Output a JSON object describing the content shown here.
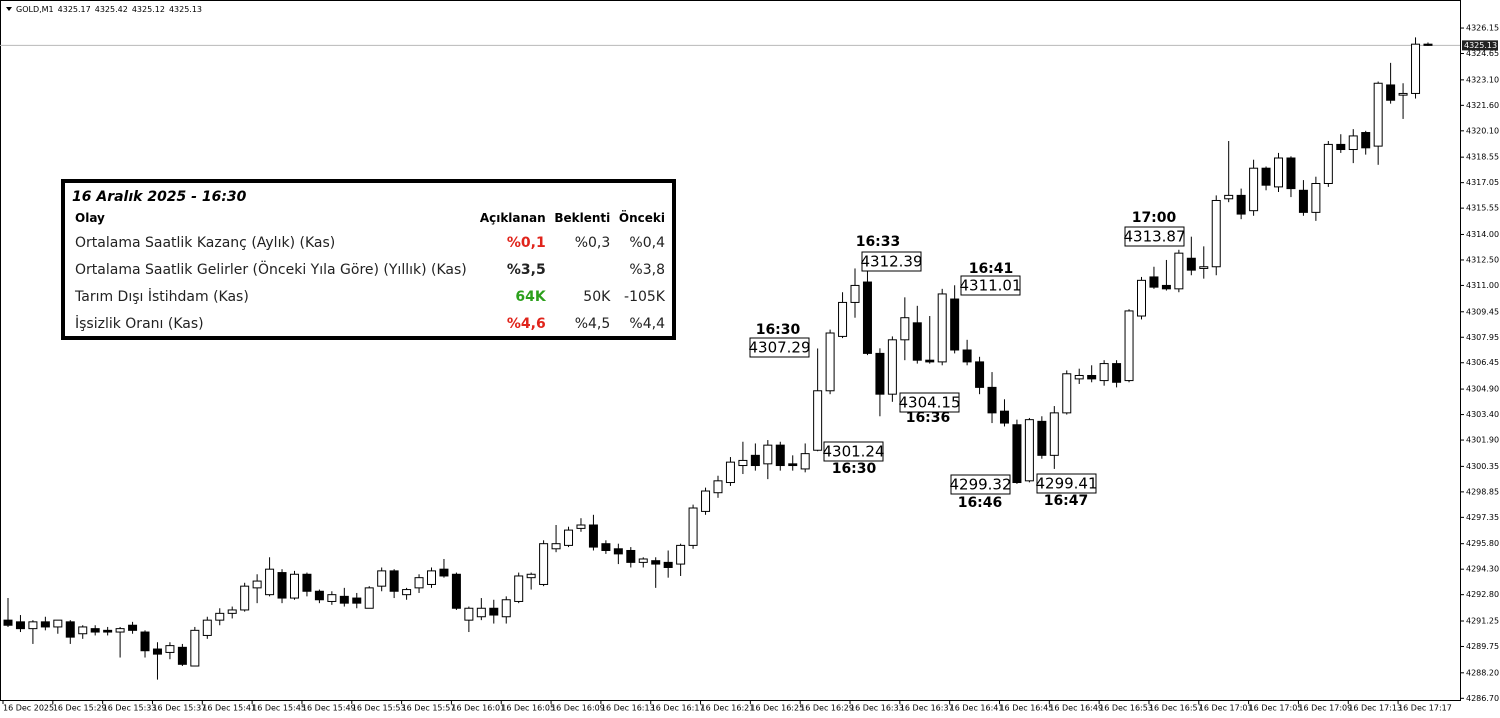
{
  "header": {
    "symbol": "GOLD,M1",
    "ohlc": [
      4325.17,
      4325.42,
      4325.12,
      4325.13
    ]
  },
  "chart_data": {
    "type": "candlestick",
    "categories": [
      "16 Dec 2025",
      null,
      null,
      null,
      "16 Dec 15:29",
      null,
      null,
      null,
      "16 Dec 15:33",
      null,
      null,
      null,
      "16 Dec 15:37",
      null,
      null,
      null,
      "16 Dec 15:41",
      null,
      null,
      null,
      "16 Dec 15:45",
      null,
      null,
      null,
      "16 Dec 15:49",
      null,
      null,
      null,
      "16 Dec 15:53",
      null,
      null,
      null,
      "16 Dec 15:57",
      null,
      null,
      null,
      "16 Dec 16:01",
      null,
      null,
      null,
      "16 Dec 16:05",
      null,
      null,
      null,
      "16 Dec 16:09",
      null,
      null,
      null,
      "16 Dec 16:13",
      null,
      null,
      null,
      "16 Dec 16:17",
      null,
      null,
      null,
      "16 Dec 16:21",
      null,
      null,
      null,
      "16 Dec 16:25",
      null,
      null,
      null,
      "16 Dec 16:29",
      null,
      null,
      null,
      "16 Dec 16:33",
      null,
      null,
      null,
      "16 Dec 16:37",
      null,
      null,
      null,
      "16 Dec 16:41",
      null,
      null,
      null,
      "16 Dec 16:45",
      null,
      null,
      null,
      "16 Dec 16:49",
      null,
      null,
      null,
      "16 Dec 16:53",
      null,
      null,
      null,
      "16 Dec 16:57",
      null,
      null,
      null,
      "16 Dec 17:01",
      null,
      null,
      null,
      "16 Dec 17:05",
      null,
      null,
      null,
      "16 Dec 17:09",
      null,
      null,
      null,
      "16 Dec 17:13",
      null,
      null,
      null,
      "16 Dec 17:17",
      null,
      null
    ],
    "open": [
      4291.3,
      4291.2,
      4290.8,
      4291.2,
      4290.9,
      4291.2,
      4290.5,
      4290.8,
      4290.7,
      4290.6,
      4291.0,
      4290.6,
      4289.6,
      4289.4,
      4289.7,
      4288.6,
      4290.4,
      4291.3,
      4291.7,
      4291.9,
      4293.2,
      4292.8,
      4294.1,
      4292.6,
      4294.0,
      4293.0,
      4292.4,
      4292.7,
      4292.6,
      4292.0,
      4293.3,
      4294.2,
      4292.8,
      4293.2,
      4293.4,
      4294.3,
      4294.0,
      4291.3,
      4291.5,
      4292.0,
      4291.5,
      4292.4,
      4293.8,
      4293.4,
      4295.5,
      4295.7,
      4296.7,
      4296.9,
      4295.8,
      4295.5,
      4295.4,
      4294.7,
      4294.8,
      4294.7,
      4294.6,
      4295.7,
      4297.7,
      4298.8,
      4299.4,
      4300.4,
      4301.0,
      4300.5,
      4301.6,
      4300.5,
      4300.2,
      4301.3,
      4304.8,
      4308.0,
      4310.0,
      4311.2,
      4307.0,
      4304.6,
      4307.8,
      4308.8,
      4306.6,
      4306.5,
      4310.2,
      4307.2,
      4306.5,
      4305.0,
      4303.6,
      4302.8,
      4299.5,
      4303.0,
      4301.0,
      4303.5,
      4305.5,
      4305.7,
      4305.4,
      4306.4,
      4305.4,
      4309.2,
      4311.5,
      4311.0,
      4310.8,
      4312.6,
      4312.0,
      4312.1,
      4316.1,
      4316.3,
      4315.4,
      4317.9,
      4316.8,
      4318.5,
      4316.6,
      4315.3,
      4317.0,
      4319.3,
      4319.0,
      4320.0,
      4319.2,
      4322.8,
      4322.2,
      4322.3,
      4325.2
    ],
    "high": [
      4292.6,
      4291.6,
      4291.3,
      4291.5,
      4291.3,
      4291.3,
      4291.0,
      4291.0,
      4290.9,
      4290.9,
      4291.2,
      4290.7,
      4290.0,
      4290.0,
      4289.9,
      4290.9,
      4291.5,
      4292.0,
      4292.1,
      4293.5,
      4294.0,
      4295.0,
      4294.3,
      4294.2,
      4294.1,
      4293.1,
      4293.0,
      4293.2,
      4292.9,
      4293.3,
      4294.4,
      4294.3,
      4293.2,
      4294.0,
      4294.4,
      4294.9,
      4294.1,
      4292.1,
      4292.6,
      4292.5,
      4292.7,
      4294.1,
      4294.1,
      4296.0,
      4296.9,
      4296.8,
      4297.3,
      4297.5,
      4296.0,
      4295.8,
      4295.6,
      4295.0,
      4295.0,
      4295.4,
      4295.8,
      4298.1,
      4299.1,
      4299.8,
      4300.9,
      4301.8,
      4301.7,
      4301.9,
      4301.8,
      4301.0,
      4301.7,
      4307.29,
      4308.4,
      4310.6,
      4312.0,
      4312.39,
      4307.3,
      4308.0,
      4310.3,
      4309.8,
      4309.2,
      4310.8,
      4311.01,
      4307.8,
      4306.8,
      4305.9,
      4304.3,
      4303.1,
      4303.2,
      4303.3,
      4303.9,
      4306.0,
      4306.1,
      4306.3,
      4306.6,
      4306.6,
      4309.6,
      4311.5,
      4312.1,
      4312.5,
      4313.1,
      4313.87,
      4313.3,
      4316.3,
      4319.5,
      4316.7,
      4318.4,
      4318.0,
      4318.8,
      4318.6,
      4317.2,
      4317.4,
      4319.5,
      4319.9,
      4320.2,
      4320.1,
      4323.0,
      4324.1,
      4322.9,
      4325.6,
      4325.3
    ],
    "low": [
      4290.9,
      4290.6,
      4289.9,
      4290.7,
      4290.5,
      4289.9,
      4290.2,
      4290.4,
      4290.4,
      4289.1,
      4290.5,
      4289.1,
      4287.8,
      4289.0,
      4288.6,
      4288.6,
      4290.2,
      4291.0,
      4291.4,
      4291.8,
      4292.3,
      4292.7,
      4292.3,
      4292.5,
      4292.7,
      4292.3,
      4292.2,
      4292.1,
      4292.0,
      4292.0,
      4293.0,
      4292.6,
      4292.5,
      4292.9,
      4293.2,
      4293.8,
      4291.9,
      4290.6,
      4291.3,
      4291.1,
      4291.1,
      4292.3,
      4293.1,
      4293.3,
      4295.3,
      4295.6,
      4296.5,
      4295.4,
      4295.2,
      4294.6,
      4294.4,
      4294.4,
      4293.2,
      4293.8,
      4293.9,
      4295.5,
      4297.5,
      4298.5,
      4299.2,
      4299.9,
      4300.1,
      4299.6,
      4300.1,
      4300.1,
      4300.0,
      4301.24,
      4304.6,
      4307.9,
      4309.1,
      4306.9,
      4303.3,
      4304.15,
      4306.6,
      4306.4,
      4306.4,
      4306.3,
      4307.0,
      4306.3,
      4304.6,
      4302.9,
      4302.7,
      4299.32,
      4299.41,
      4300.8,
      4300.2,
      4303.4,
      4305.2,
      4305.3,
      4305.1,
      4305.0,
      4305.3,
      4309.0,
      4310.8,
      4310.7,
      4310.6,
      4311.6,
      4311.4,
      4311.6,
      4315.9,
      4314.9,
      4315.1,
      4316.6,
      4316.5,
      4316.2,
      4315.1,
      4314.8,
      4316.8,
      4318.8,
      4318.2,
      4318.7,
      4318.1,
      4321.7,
      4320.8,
      4322.0,
      4325.1
    ],
    "close": [
      4291.0,
      4290.8,
      4291.2,
      4290.9,
      4291.3,
      4290.3,
      4290.9,
      4290.6,
      4290.6,
      4290.8,
      4290.7,
      4289.5,
      4289.3,
      4289.8,
      4288.7,
      4290.7,
      4291.3,
      4291.7,
      4291.9,
      4293.3,
      4293.6,
      4294.3,
      4292.6,
      4294.0,
      4293.0,
      4292.5,
      4292.8,
      4292.3,
      4292.3,
      4293.2,
      4294.2,
      4293.0,
      4293.1,
      4293.8,
      4294.2,
      4293.9,
      4292.0,
      4292.0,
      4292.0,
      4291.6,
      4292.5,
      4293.9,
      4294.0,
      4295.8,
      4295.8,
      4296.6,
      4296.9,
      4295.6,
      4295.4,
      4295.2,
      4294.7,
      4294.9,
      4294.6,
      4294.4,
      4295.7,
      4297.9,
      4298.9,
      4299.5,
      4300.6,
      4300.7,
      4300.4,
      4301.6,
      4300.4,
      4300.4,
      4301.1,
      4304.8,
      4308.2,
      4310.0,
      4311.0,
      4307.0,
      4304.6,
      4307.8,
      4309.1,
      4306.6,
      4306.5,
      4310.5,
      4307.2,
      4306.5,
      4305.0,
      4303.5,
      4302.9,
      4299.4,
      4303.1,
      4301.0,
      4303.5,
      4305.8,
      4305.7,
      4305.5,
      4306.4,
      4305.3,
      4309.5,
      4311.3,
      4310.9,
      4310.8,
      4312.9,
      4311.9,
      4312.1,
      4316.0,
      4316.3,
      4315.2,
      4317.9,
      4316.9,
      4318.5,
      4316.7,
      4315.3,
      4317.0,
      4319.3,
      4319.0,
      4319.8,
      4319.1,
      4322.9,
      4321.9,
      4322.3,
      4325.2,
      4325.13
    ],
    "up_color": "#ffffff",
    "down_color": "#000000",
    "last_price": 4325.13,
    "ylim": [
      4286.6,
      4327.8
    ],
    "yticks": [
      4326.15,
      4324.65,
      {
        "value": 4323.1,
        "label": "4323.10"
      },
      {
        "value": 4321.6,
        "label": "4321.60"
      },
      {
        "value": 4320.1,
        "label": "4320.10"
      },
      4318.55,
      4317.05,
      4315.55,
      {
        "value": 4314,
        "label": "4314.00"
      },
      {
        "value": 4312.5,
        "label": "4312.50"
      },
      {
        "value": 4311,
        "label": "4311.00"
      },
      4309.45,
      4307.95,
      4306.45,
      {
        "value": 4304.9,
        "label": "4304.90"
      },
      {
        "value": 4303.4,
        "label": "4303.40"
      },
      {
        "value": 4301.9,
        "label": "4301.90"
      },
      4300.35,
      4298.85,
      4297.35,
      {
        "value": 4295.8,
        "label": "4295.80"
      },
      {
        "value": 4294.3,
        "label": "4294.30"
      },
      {
        "value": 4292.8,
        "label": "4292.80"
      },
      4291.25,
      4289.75,
      {
        "value": 4288.2,
        "label": "4288.20"
      },
      {
        "value": 4286.7,
        "label": "4286.70"
      }
    ],
    "annotations": [
      {
        "time": "16:30",
        "price": 4307.29
      },
      {
        "time": "16:30",
        "price": 4301.24
      },
      {
        "time": "16:33",
        "price": 4312.39
      },
      {
        "time": "16:36",
        "price": 4304.15
      },
      {
        "time": "16:41",
        "price": 4311.01
      },
      {
        "time": "16:46",
        "price": 4299.32
      },
      {
        "time": "16:47",
        "price": 4299.41
      },
      {
        "time": "17:00",
        "price": 4313.87
      }
    ]
  },
  "table": {
    "title": "16 Aralık 2025 -  16:30",
    "columns": [
      "Olay",
      "Açıklanan",
      "Beklenti",
      "Önceki"
    ],
    "rows": [
      {
        "event": "Ortalama Saatlik Kazanç (Aylık) (Kas)",
        "actual": "%0,1",
        "forecast": "%0,3",
        "previous": "%0,4",
        "actual_color": "#e0241b"
      },
      {
        "event": "Ortalama Saatlik Gelirler (Önceki Yıla Göre) (Yıllık) (Kas)",
        "actual": "%3,5",
        "forecast": null,
        "previous": "%3,8",
        "actual_color": "#222222"
      },
      {
        "event": "Tarım Dışı İstihdam  (Kas)",
        "actual": "64K",
        "forecast": "50K",
        "previous": "-105K",
        "actual_color": "#2ca01c"
      },
      {
        "event": "İşsizlik Oranı  (Kas)",
        "actual": "%4,6",
        "forecast": "%4,5",
        "previous": "%4,4",
        "actual_color": "#e0241b"
      }
    ]
  }
}
